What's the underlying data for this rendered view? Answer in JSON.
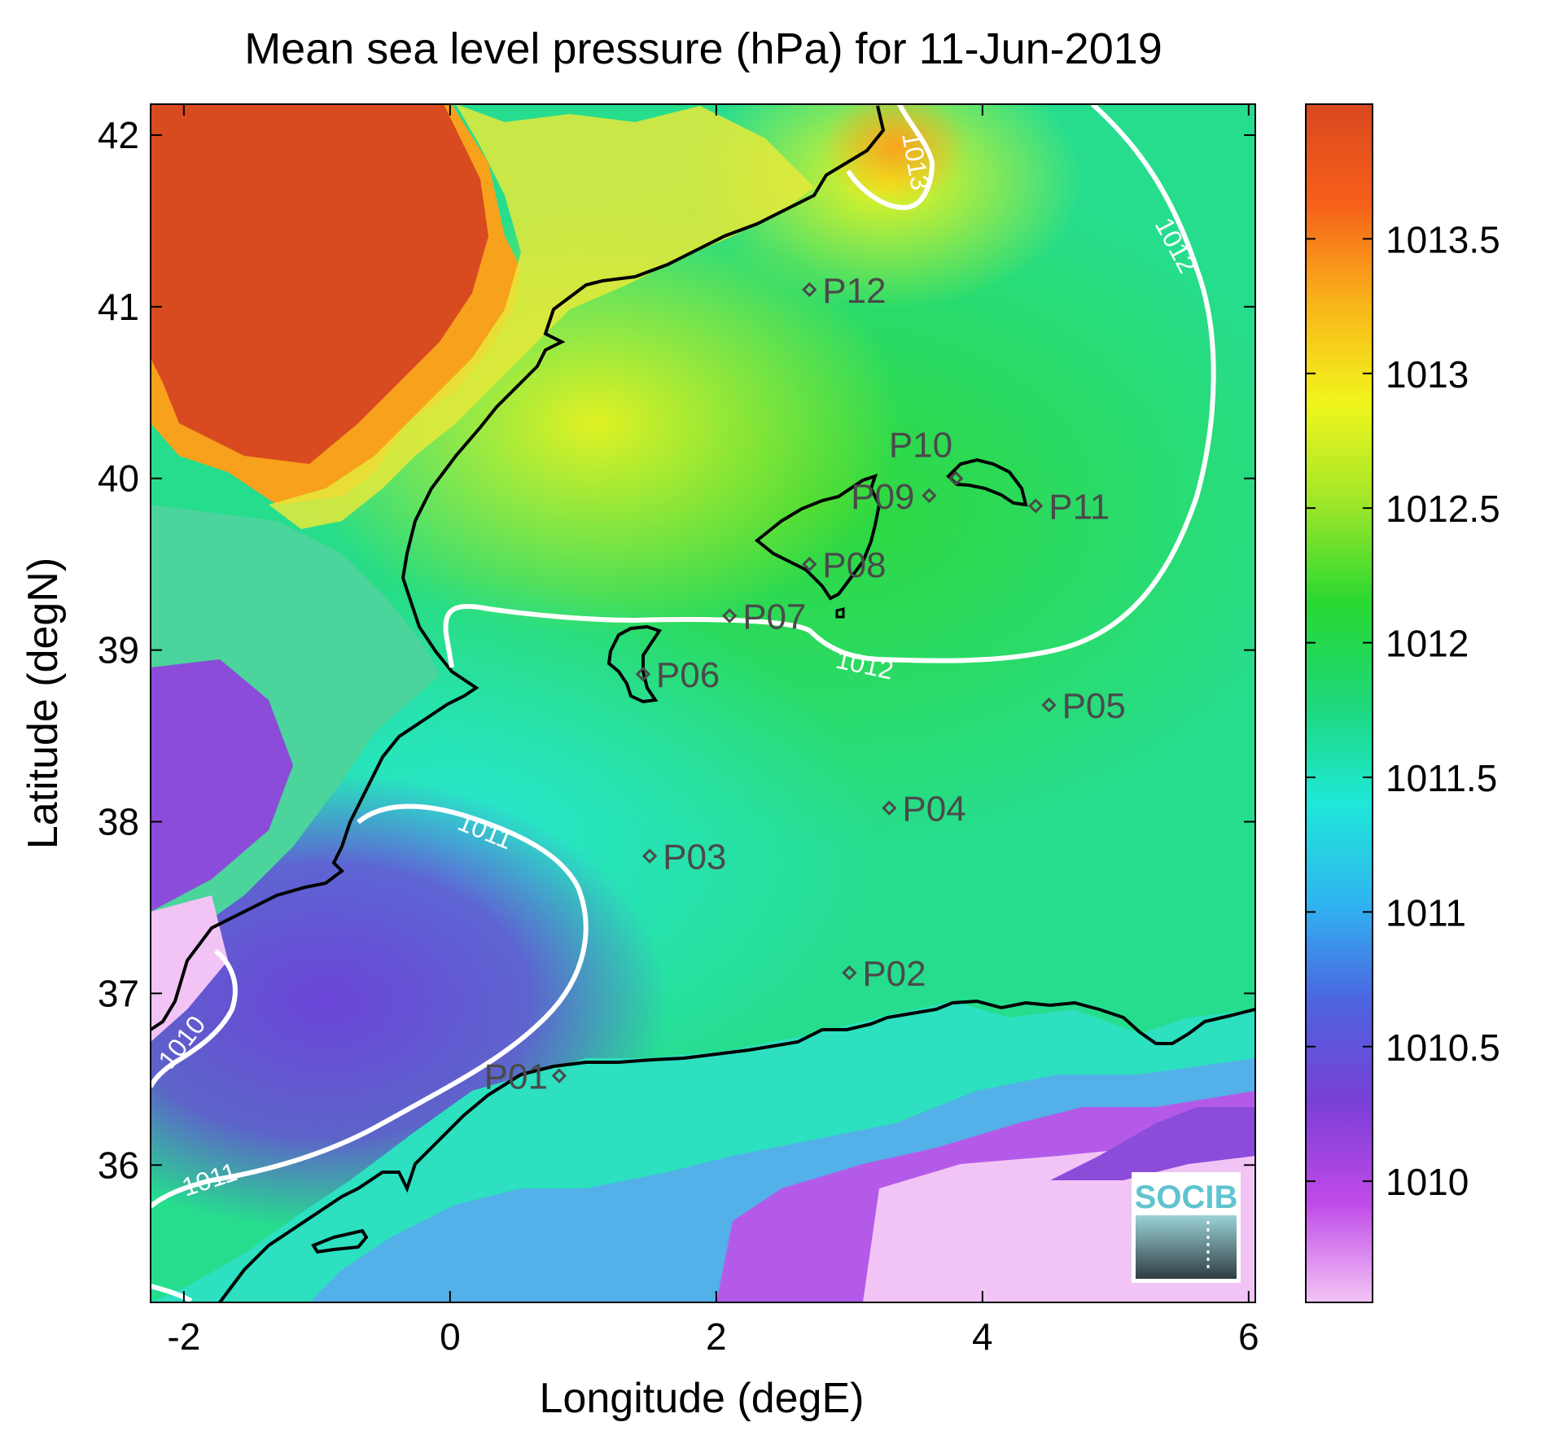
{
  "title": "Mean sea level pressure (hPa) for 11-Jun-2019",
  "xlabel": "Longitude (degE)",
  "ylabel": "Latitude (degN)",
  "xlim": [
    -2.25,
    6.05
  ],
  "ylim": [
    35.2,
    42.18
  ],
  "xticks": [
    {
      "value": -2,
      "label": "-2"
    },
    {
      "value": 0,
      "label": "0"
    },
    {
      "value": 2,
      "label": "2"
    },
    {
      "value": 4,
      "label": "4"
    },
    {
      "value": 6,
      "label": "6"
    }
  ],
  "yticks": [
    {
      "value": 36,
      "label": "36"
    },
    {
      "value": 37,
      "label": "37"
    },
    {
      "value": 38,
      "label": "38"
    },
    {
      "value": 39,
      "label": "39"
    },
    {
      "value": 40,
      "label": "40"
    },
    {
      "value": 41,
      "label": "41"
    },
    {
      "value": 42,
      "label": "42"
    }
  ],
  "colorbar": {
    "min": 1009.55,
    "max": 1014.0,
    "ticks": [
      {
        "value": 1010,
        "label": "1010"
      },
      {
        "value": 1010.5,
        "label": "1010.5"
      },
      {
        "value": 1011,
        "label": "1011"
      },
      {
        "value": 1011.5,
        "label": "1011.5"
      },
      {
        "value": 1012,
        "label": "1012"
      },
      {
        "value": 1012.5,
        "label": "1012.5"
      },
      {
        "value": 1013,
        "label": "1013"
      },
      {
        "value": 1013.5,
        "label": "1013.5"
      }
    ],
    "colors": [
      "#f2c4f5",
      "#c04ae8",
      "#7a3fd6",
      "#4d63e0",
      "#30b4f0",
      "#1fe8d8",
      "#1ed87a",
      "#28d832",
      "#9fe62a",
      "#f1f51c",
      "#f9b51a",
      "#f6601a",
      "#d9481f"
    ]
  },
  "logo": {
    "label": "SOCIB"
  },
  "chart_data": {
    "type": "heatmap",
    "variable": "Mean sea level pressure (hPa)",
    "date": "11-Jun-2019",
    "stations": [
      {
        "name": "P01",
        "lon": 0.82,
        "lat": 36.52
      },
      {
        "name": "P02",
        "lon": 3.0,
        "lat": 37.12
      },
      {
        "name": "P03",
        "lon": 1.5,
        "lat": 37.8
      },
      {
        "name": "P04",
        "lon": 3.3,
        "lat": 38.08
      },
      {
        "name": "P05",
        "lon": 4.5,
        "lat": 38.68
      },
      {
        "name": "P06",
        "lon": 1.45,
        "lat": 38.86
      },
      {
        "name": "P07",
        "lon": 2.1,
        "lat": 39.2
      },
      {
        "name": "P08",
        "lon": 2.7,
        "lat": 39.5
      },
      {
        "name": "P09",
        "lon": 3.6,
        "lat": 39.9
      },
      {
        "name": "P10",
        "lon": 3.8,
        "lat": 40.0
      },
      {
        "name": "P11",
        "lon": 4.4,
        "lat": 39.84
      },
      {
        "name": "P12",
        "lon": 2.7,
        "lat": 41.1
      }
    ],
    "contours": [
      {
        "level": 1010,
        "label": "1010"
      },
      {
        "level": 1011,
        "label": "1011"
      },
      {
        "level": 1012,
        "label": "1012"
      },
      {
        "level": 1013,
        "label": "1013"
      }
    ]
  }
}
